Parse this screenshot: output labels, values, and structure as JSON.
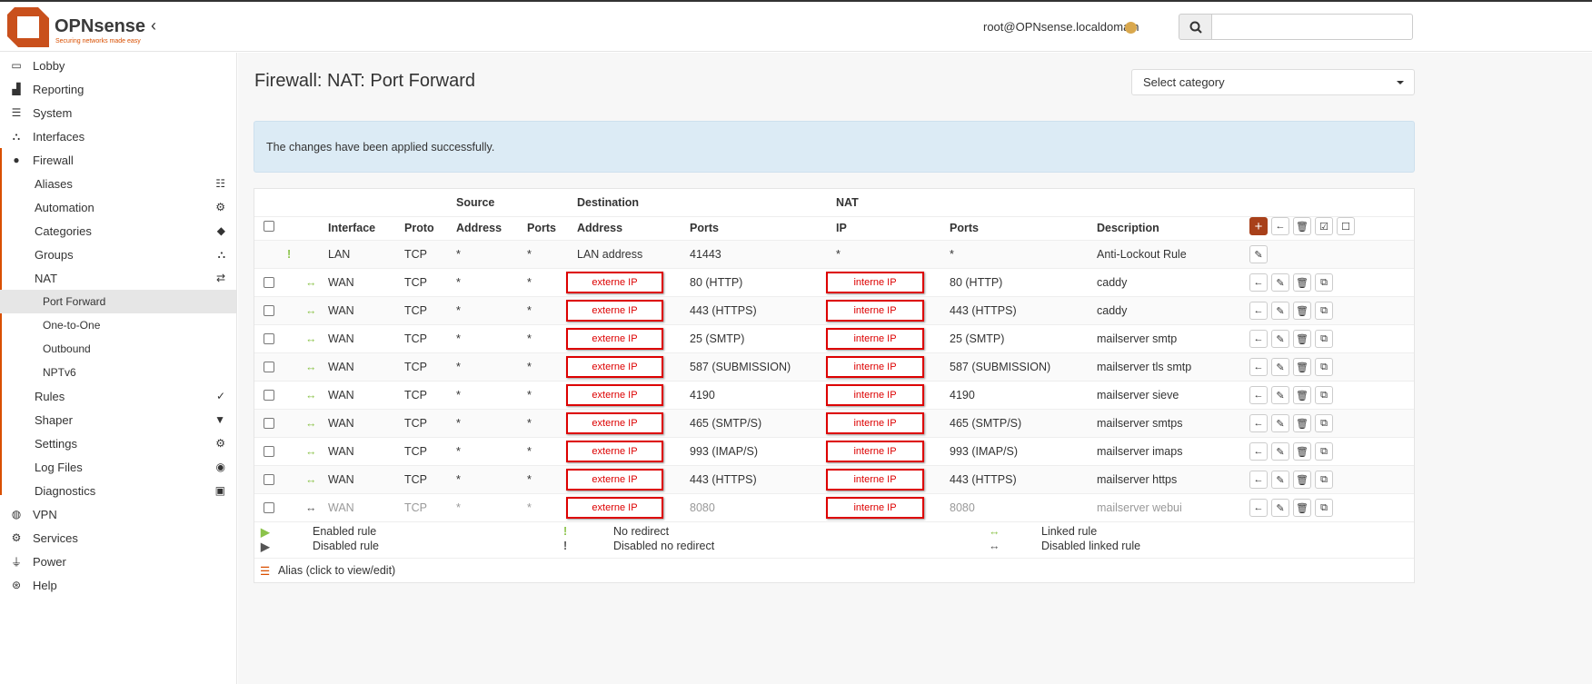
{
  "brand": {
    "name": "OPNsense",
    "tagline": "Securing networks made easy"
  },
  "header": {
    "user": "root@OPNsense.localdomain",
    "search_placeholder": ""
  },
  "sidebar": {
    "items": [
      {
        "label": "Lobby",
        "icon": "laptop-icon"
      },
      {
        "label": "Reporting",
        "icon": "chart-icon"
      },
      {
        "label": "System",
        "icon": "server-icon"
      },
      {
        "label": "Interfaces",
        "icon": "sitemap-icon"
      },
      {
        "label": "Firewall",
        "icon": "fire-icon"
      },
      {
        "label": "Aliases",
        "icon": "list-icon"
      },
      {
        "label": "Automation",
        "icon": "gear-icon"
      },
      {
        "label": "Categories",
        "icon": "tags-icon"
      },
      {
        "label": "Groups",
        "icon": "sitemap-icon"
      },
      {
        "label": "NAT",
        "icon": "exchange-icon"
      },
      {
        "label": "Port Forward"
      },
      {
        "label": "One-to-One"
      },
      {
        "label": "Outbound"
      },
      {
        "label": "NPTv6"
      },
      {
        "label": "Rules",
        "icon": "check-icon"
      },
      {
        "label": "Shaper",
        "icon": "filter-icon"
      },
      {
        "label": "Settings",
        "icon": "gears-icon"
      },
      {
        "label": "Log Files",
        "icon": "eye-icon"
      },
      {
        "label": "Diagnostics",
        "icon": "medkit-icon"
      },
      {
        "label": "VPN",
        "icon": "globe-icon"
      },
      {
        "label": "Services",
        "icon": "gear-icon"
      },
      {
        "label": "Power",
        "icon": "plug-icon"
      },
      {
        "label": "Help",
        "icon": "lifebuoy-icon"
      }
    ]
  },
  "page": {
    "title": "Firewall: NAT: Port Forward",
    "category_select": "Select category",
    "alert": "The changes have been applied successfully."
  },
  "table": {
    "groups": {
      "source": "Source",
      "destination": "Destination",
      "nat": "NAT"
    },
    "headers": {
      "interface": "Interface",
      "proto": "Proto",
      "src_addr": "Address",
      "src_ports": "Ports",
      "dst_addr": "Address",
      "dst_ports": "Ports",
      "nat_ip": "IP",
      "nat_ports": "Ports",
      "description": "Description"
    },
    "lockout": {
      "interface": "LAN",
      "proto": "TCP",
      "src_addr": "*",
      "src_ports": "*",
      "dst_addr": "LAN address",
      "dst_ports": "41443",
      "nat_ip": "*",
      "nat_ports": "*",
      "description": "Anti-Lockout Rule"
    },
    "rules": [
      {
        "interface": "WAN",
        "proto": "TCP",
        "src_addr": "*",
        "src_ports": "*",
        "dst_addr": "externe IP",
        "dst_ports": "80 (HTTP)",
        "nat_ip": "interne IP",
        "nat_ports": "80 (HTTP)",
        "description": "caddy",
        "enabled": true
      },
      {
        "interface": "WAN",
        "proto": "TCP",
        "src_addr": "*",
        "src_ports": "*",
        "dst_addr": "externe IP",
        "dst_ports": "443 (HTTPS)",
        "nat_ip": "interne IP",
        "nat_ports": "443 (HTTPS)",
        "description": "caddy",
        "enabled": true
      },
      {
        "interface": "WAN",
        "proto": "TCP",
        "src_addr": "*",
        "src_ports": "*",
        "dst_addr": "externe IP",
        "dst_ports": "25 (SMTP)",
        "nat_ip": "interne IP",
        "nat_ports": "25 (SMTP)",
        "description": "mailserver smtp",
        "enabled": true
      },
      {
        "interface": "WAN",
        "proto": "TCP",
        "src_addr": "*",
        "src_ports": "*",
        "dst_addr": "externe IP",
        "dst_ports": "587 (SUBMISSION)",
        "nat_ip": "interne IP",
        "nat_ports": "587 (SUBMISSION)",
        "description": "mailserver tls smtp",
        "enabled": true
      },
      {
        "interface": "WAN",
        "proto": "TCP",
        "src_addr": "*",
        "src_ports": "*",
        "dst_addr": "externe IP",
        "dst_ports": "4190",
        "nat_ip": "interne IP",
        "nat_ports": "4190",
        "description": "mailserver sieve",
        "enabled": true
      },
      {
        "interface": "WAN",
        "proto": "TCP",
        "src_addr": "*",
        "src_ports": "*",
        "dst_addr": "externe IP",
        "dst_ports": "465 (SMTP/S)",
        "nat_ip": "interne IP",
        "nat_ports": "465 (SMTP/S)",
        "description": "mailserver smtps",
        "enabled": true
      },
      {
        "interface": "WAN",
        "proto": "TCP",
        "src_addr": "*",
        "src_ports": "*",
        "dst_addr": "externe IP",
        "dst_ports": "993 (IMAP/S)",
        "nat_ip": "interne IP",
        "nat_ports": "993 (IMAP/S)",
        "description": "mailserver imaps",
        "enabled": true
      },
      {
        "interface": "WAN",
        "proto": "TCP",
        "src_addr": "*",
        "src_ports": "*",
        "dst_addr": "externe IP",
        "dst_ports": "443 (HTTPS)",
        "nat_ip": "interne IP",
        "nat_ports": "443 (HTTPS)",
        "description": "mailserver https",
        "enabled": true
      },
      {
        "interface": "WAN",
        "proto": "TCP",
        "src_addr": "*",
        "src_ports": "*",
        "dst_addr": "externe IP",
        "dst_ports": "8080",
        "nat_ip": "interne IP",
        "nat_ports": "8080",
        "description": "mailserver webui",
        "enabled": false
      }
    ]
  },
  "legend": {
    "enabled": "Enabled rule",
    "disabled": "Disabled rule",
    "no_redirect": "No redirect",
    "disabled_no_redirect": "Disabled no redirect",
    "linked": "Linked rule",
    "disabled_linked": "Disabled linked rule",
    "alias": "Alias (click to view/edit)"
  },
  "colors": {
    "accent": "#d94f00",
    "add_button": "#a8401a",
    "enabled_icon": "#8bc34a",
    "redaction": "#dd0000"
  }
}
